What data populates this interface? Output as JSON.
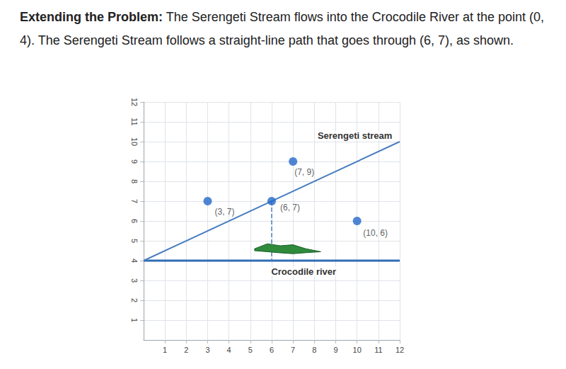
{
  "header": {
    "bold": "Extending the Problem:",
    "text": "The Serengeti Stream flows into the Crocodile River at the point (0, 4). The Serengeti Stream follows a straight-line path that goes through (6, 7), as shown."
  },
  "chart_data": {
    "type": "scatter",
    "xlim": [
      0,
      12
    ],
    "ylim": [
      0,
      12
    ],
    "xticks": [
      1,
      2,
      3,
      4,
      5,
      6,
      7,
      8,
      9,
      10,
      11,
      12
    ],
    "yticks": [
      1,
      2,
      3,
      4,
      5,
      6,
      7,
      8,
      9,
      10,
      11,
      12
    ],
    "grid": true,
    "series": [
      {
        "name": "Serengeti stream",
        "type": "line",
        "color": "#4a7fc1",
        "line_style": "solid",
        "x": [
          0,
          12
        ],
        "values": [
          4,
          10
        ]
      },
      {
        "name": "Crocodile river",
        "type": "line",
        "color": "#2f6db5",
        "line_style": "solid",
        "x": [
          0,
          12
        ],
        "values": [
          4,
          4
        ]
      },
      {
        "type": "line",
        "color": "#4a7fc1",
        "line_style": "dashed",
        "x": [
          6,
          6
        ],
        "values": [
          7,
          4
        ]
      },
      {
        "type": "scatter",
        "color": "#2468c8",
        "marker": "circle",
        "x": [
          3,
          7,
          10,
          6
        ],
        "values": [
          7,
          9,
          6,
          7
        ],
        "value_labels": [
          "(3, 7)",
          "(7, 9)",
          "(10, 6)",
          "(6, 7)"
        ]
      }
    ]
  }
}
